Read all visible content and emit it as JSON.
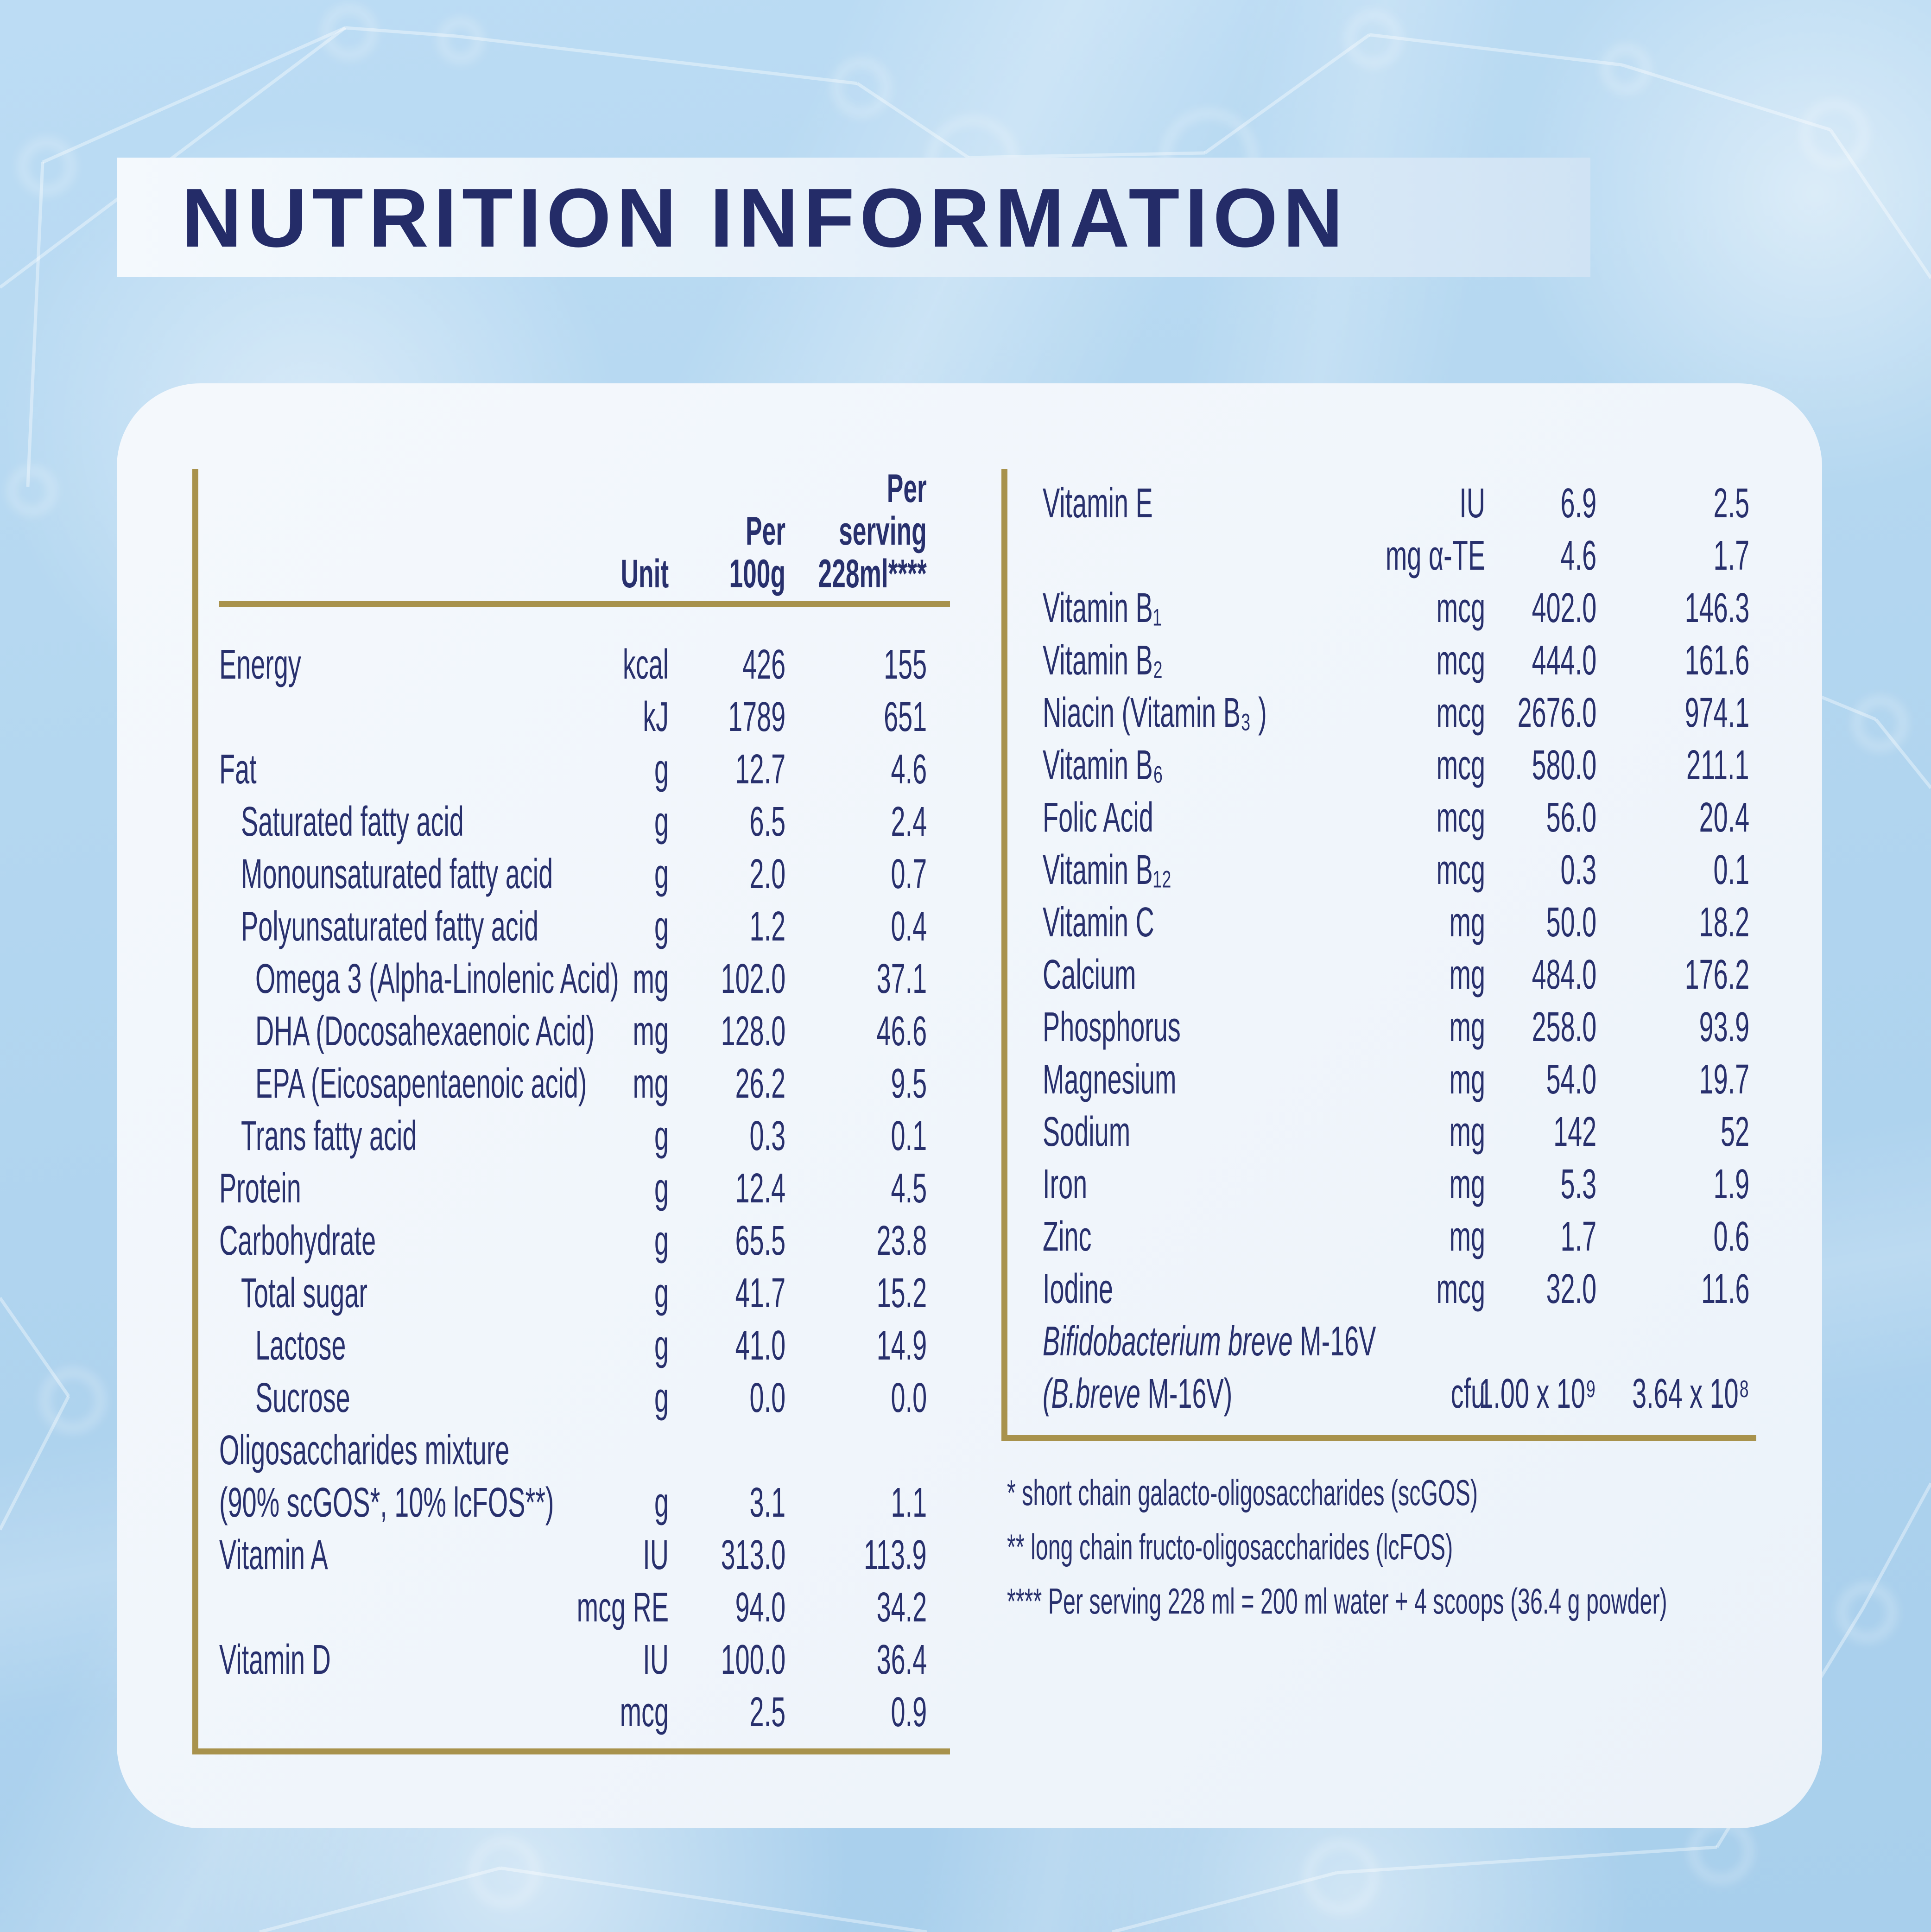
{
  "title": "NUTRITION INFORMATION",
  "colors": {
    "background_blue": "#b4d7f0",
    "card_white": "#f2f6fb",
    "navy_text": "#28306d",
    "gold_rule": "#a8924c"
  },
  "table_left": {
    "header": {
      "unit": "Unit",
      "per_100g": "Per\n100g",
      "per_serving": "Per\nserving\n228ml****"
    },
    "rows": [
      {
        "label": "Energy",
        "indent": 0,
        "unit": "kcal",
        "per_100g": "426",
        "per_serving": "155"
      },
      {
        "label": "",
        "indent": 0,
        "unit": "kJ",
        "per_100g": "1789",
        "per_serving": "651"
      },
      {
        "label": "Fat",
        "indent": 0,
        "unit": "g",
        "per_100g": "12.7",
        "per_serving": "4.6"
      },
      {
        "label": "Saturated fatty acid",
        "indent": 1,
        "unit": "g",
        "per_100g": "6.5",
        "per_serving": "2.4"
      },
      {
        "label": "Monounsaturated fatty acid",
        "indent": 1,
        "unit": "g",
        "per_100g": "2.0",
        "per_serving": "0.7"
      },
      {
        "label": "Polyunsaturated fatty acid",
        "indent": 1,
        "unit": "g",
        "per_100g": "1.2",
        "per_serving": "0.4"
      },
      {
        "label": "Omega 3 (Alpha-Linolenic Acid)",
        "indent": 2,
        "unit": "mg",
        "per_100g": "102.0",
        "per_serving": "37.1"
      },
      {
        "label": "DHA (Docosahexaenoic Acid)",
        "indent": 2,
        "unit": "mg",
        "per_100g": "128.0",
        "per_serving": "46.6"
      },
      {
        "label": "EPA (Eicosapentaenoic acid)",
        "indent": 2,
        "unit": "mg",
        "per_100g": "26.2",
        "per_serving": "9.5"
      },
      {
        "label": "Trans fatty acid",
        "indent": 1,
        "unit": "g",
        "per_100g": "0.3",
        "per_serving": "0.1"
      },
      {
        "label": "Protein",
        "indent": 0,
        "unit": "g",
        "per_100g": "12.4",
        "per_serving": "4.5"
      },
      {
        "label": "Carbohydrate",
        "indent": 0,
        "unit": "g",
        "per_100g": "65.5",
        "per_serving": "23.8"
      },
      {
        "label": "Total sugar",
        "indent": 1,
        "unit": "g",
        "per_100g": "41.7",
        "per_serving": "15.2"
      },
      {
        "label": "Lactose",
        "indent": 2,
        "unit": "g",
        "per_100g": "41.0",
        "per_serving": "14.9"
      },
      {
        "label": "Sucrose",
        "indent": 2,
        "unit": "g",
        "per_100g": "0.0",
        "per_serving": "0.0"
      },
      {
        "label": "Oligosaccharides mixture",
        "indent": 0,
        "unit": "",
        "per_100g": "",
        "per_serving": ""
      },
      {
        "label": "(90% scGOS*, 10% lcFOS**)",
        "indent": 0,
        "unit": "g",
        "per_100g": "3.1",
        "per_serving": "1.1"
      },
      {
        "label": "Vitamin A",
        "indent": 0,
        "unit": "IU",
        "per_100g": "313.0",
        "per_serving": "113.9"
      },
      {
        "label": "",
        "indent": 0,
        "unit": "mcg RE",
        "per_100g": "94.0",
        "per_serving": "34.2"
      },
      {
        "label": "Vitamin D",
        "indent": 0,
        "unit": "IU",
        "per_100g": "100.0",
        "per_serving": "36.4"
      },
      {
        "label": "",
        "indent": 0,
        "unit": "mcg",
        "per_100g": "2.5",
        "per_serving": "0.9"
      }
    ]
  },
  "table_right": {
    "rows": [
      {
        "label": "Vitamin E",
        "indent": 0,
        "unit": "IU",
        "per_100g": "6.9",
        "per_serving": "2.5"
      },
      {
        "label": "",
        "indent": 0,
        "unit": "mg α-TE",
        "per_100g": "4.6",
        "per_serving": "1.7"
      },
      {
        "label": "Vitamin B₁",
        "indent": 0,
        "unit": "mcg",
        "per_100g": "402.0",
        "per_serving": "146.3"
      },
      {
        "label": "Vitamin B₂",
        "indent": 0,
        "unit": "mcg",
        "per_100g": "444.0",
        "per_serving": "161.6"
      },
      {
        "label": "Niacin (Vitamin B₃ )",
        "indent": 0,
        "unit": "mcg",
        "per_100g": "2676.0",
        "per_serving": "974.1"
      },
      {
        "label": "Vitamin B₆",
        "indent": 0,
        "unit": "mcg",
        "per_100g": "580.0",
        "per_serving": "211.1"
      },
      {
        "label": "Folic Acid",
        "indent": 0,
        "unit": "mcg",
        "per_100g": "56.0",
        "per_serving": "20.4"
      },
      {
        "label": "Vitamin B₁₂",
        "indent": 0,
        "unit": "mcg",
        "per_100g": "0.3",
        "per_serving": "0.1"
      },
      {
        "label": "Vitamin C",
        "indent": 0,
        "unit": "mg",
        "per_100g": "50.0",
        "per_serving": "18.2"
      },
      {
        "label": "Calcium",
        "indent": 0,
        "unit": "mg",
        "per_100g": "484.0",
        "per_serving": "176.2"
      },
      {
        "label": "Phosphorus",
        "indent": 0,
        "unit": "mg",
        "per_100g": "258.0",
        "per_serving": "93.9"
      },
      {
        "label": "Magnesium",
        "indent": 0,
        "unit": "mg",
        "per_100g": "54.0",
        "per_serving": "19.7"
      },
      {
        "label": "Sodium",
        "indent": 0,
        "unit": "mg",
        "per_100g": "142",
        "per_serving": "52"
      },
      {
        "label": "Iron",
        "indent": 0,
        "unit": "mg",
        "per_100g": "5.3",
        "per_serving": "1.9"
      },
      {
        "label": "Zinc",
        "indent": 0,
        "unit": "mg",
        "per_100g": "1.7",
        "per_serving": "0.6"
      },
      {
        "label": "Iodine",
        "indent": 0,
        "unit": "mcg",
        "per_100g": "32.0",
        "per_serving": "11.6"
      },
      {
        "parts": [
          {
            "text": "Bifidobacterium breve",
            "italic": true
          },
          {
            "text": " M-16V",
            "italic": false
          }
        ],
        "indent": 0,
        "unit": "",
        "per_100g": "",
        "per_serving": ""
      },
      {
        "parts": [
          {
            "text": "(B.breve",
            "italic": true
          },
          {
            "text": " M-16V)",
            "italic": false
          }
        ],
        "indent": 0,
        "unit": "cfu",
        "per_100g": "1.00 x 10⁹",
        "per_serving": "3.64 x 10⁸"
      }
    ]
  },
  "footnotes": [
    "* short chain galacto-oligosaccharides (scGOS)",
    "** long chain fructo-oligosaccharides (lcFOS)",
    "**** Per serving 228 ml = 200 ml water + 4 scoops (36.4 g powder)"
  ]
}
